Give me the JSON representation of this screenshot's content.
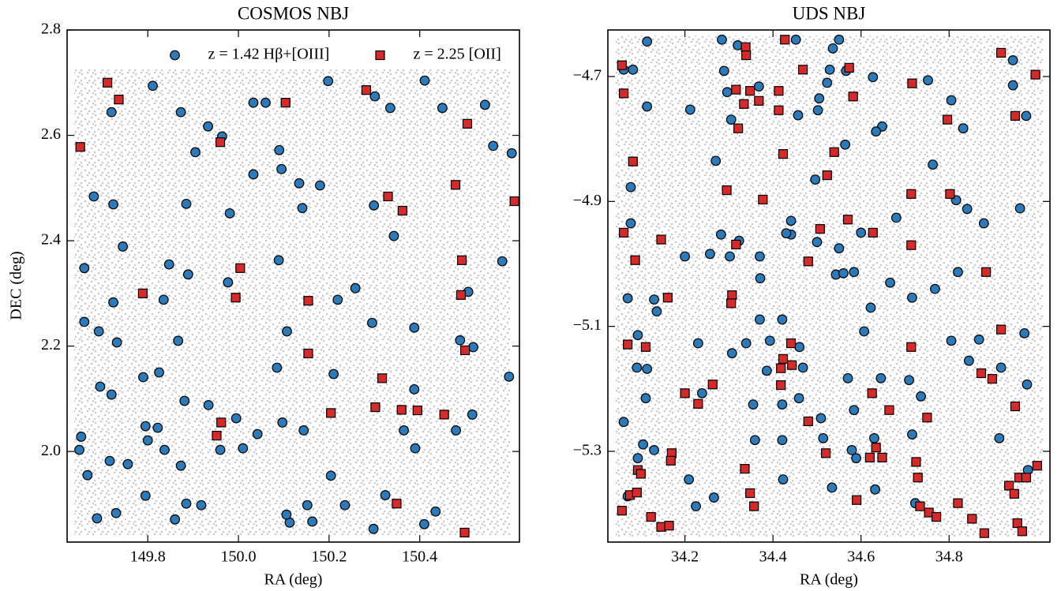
{
  "chart_data": [
    {
      "type": "scatter",
      "title": "COSMOS NBJ",
      "x_label": "RA (deg)",
      "y_label": "DEC (deg)",
      "xlim": [
        149.622,
        150.62
      ],
      "ylim": [
        1.828,
        2.8
      ],
      "xticks": [
        149.8,
        {
          "value": 150.0,
          "label": "150.0"
        },
        150.2,
        150.4
      ],
      "yticks": [
        {
          "value": 2.0,
          "label": "2.0"
        },
        2.2,
        2.4,
        2.6,
        2.8
      ],
      "legend": "upper center",
      "series": [
        {
          "name": "z = 1.42 Hβ+[OIII]",
          "marker": "circle",
          "color": "#2b7bba",
          "x": [
            149.811,
            149.72,
            149.873,
            149.933,
            149.964,
            149.905,
            150.033,
            150.06,
            150.09,
            150.033,
            150.095,
            150.198,
            150.301,
            150.335,
            150.411,
            150.45,
            150.544,
            150.562,
            150.603,
            149.681,
            149.724,
            149.745,
            149.885,
            149.981,
            150.134,
            150.18,
            150.141,
            150.299,
            150.343,
            150.507,
            150.582,
            149.66,
            149.847,
            149.889,
            149.977,
            149.835,
            150.089,
            150.219,
            150.258,
            150.107,
            149.724,
            149.867,
            149.692,
            149.66,
            149.732,
            150.388,
            150.295,
            150.489,
            150.518,
            149.695,
            149.72,
            149.79,
            149.825,
            149.934,
            150.085,
            150.21,
            150.388,
            150.597,
            149.795,
            149.8,
            149.822,
            149.881,
            149.995,
            150.042,
            150.097,
            150.144,
            150.365,
            150.516,
            150.48,
            149.649,
            149.667,
            149.716,
            149.756,
            149.795,
            149.837,
            149.873,
            149.885,
            149.918,
            149.96,
            150.01,
            150.152,
            150.204,
            150.235,
            150.324,
            150.39,
            149.688,
            149.73,
            149.86,
            150.113,
            150.163,
            150.298,
            150.41,
            150.435,
            150.106,
            149.653
          ],
          "values": [
            2.694,
            2.644,
            2.644,
            2.617,
            2.598,
            2.568,
            2.662,
            2.662,
            2.572,
            2.526,
            2.536,
            2.703,
            2.674,
            2.652,
            2.704,
            2.652,
            2.658,
            2.58,
            2.566,
            2.484,
            2.469,
            2.389,
            2.47,
            2.452,
            2.509,
            2.505,
            2.462,
            2.467,
            2.409,
            2.303,
            2.361,
            2.348,
            2.355,
            2.336,
            2.321,
            2.288,
            2.363,
            2.288,
            2.31,
            2.228,
            2.283,
            2.21,
            2.228,
            2.246,
            2.207,
            2.235,
            2.244,
            2.211,
            2.198,
            2.123,
            2.108,
            2.141,
            2.15,
            2.088,
            2.159,
            2.147,
            2.118,
            2.142,
            2.048,
            2.021,
            2.045,
            2.096,
            2.063,
            2.033,
            2.055,
            2.04,
            2.04,
            2.07,
            2.04,
            2.003,
            1.955,
            1.982,
            1.976,
            1.916,
            2.003,
            1.973,
            1.901,
            1.898,
            2.003,
            2.006,
            1.898,
            1.954,
            1.898,
            1.917,
            2.006,
            1.873,
            1.883,
            1.871,
            1.865,
            1.867,
            1.853,
            1.862,
            1.886,
            1.88,
            2.028
          ]
        },
        {
          "name": "z = 2.25 [OII]",
          "marker": "square",
          "color": "#d62a2a",
          "x": [
            149.651,
            149.711,
            149.736,
            149.96,
            150.104,
            150.282,
            150.33,
            150.362,
            150.479,
            150.505,
            150.609,
            150.004,
            149.789,
            149.994,
            150.154,
            150.154,
            150.493,
            150.491,
            150.5,
            150.317,
            150.302,
            150.36,
            150.395,
            150.454,
            150.204,
            149.962,
            149.952,
            150.349,
            150.499
          ],
          "values": [
            2.578,
            2.7,
            2.668,
            2.587,
            2.662,
            2.686,
            2.484,
            2.457,
            2.506,
            2.622,
            2.475,
            2.348,
            2.3,
            2.292,
            2.286,
            2.186,
            2.363,
            2.297,
            2.192,
            2.139,
            2.084,
            2.079,
            2.078,
            2.07,
            2.073,
            2.055,
            2.03,
            1.901,
            1.846
          ]
        }
      ]
    },
    {
      "type": "scatter",
      "title": "UDS NBJ",
      "x_label": "RA (deg)",
      "xlim": [
        34.025,
        35.029
      ],
      "ylim": [
        -5.4453,
        -4.6255
      ],
      "xticks": [
        34.2,
        34.4,
        34.6,
        34.8
      ],
      "yticks": [
        {
          "value": -5.3,
          "label": "−5.3"
        },
        {
          "value": -5.1,
          "label": "−5.1"
        },
        {
          "value": -4.9,
          "label": "−4.9"
        },
        {
          "value": -4.7,
          "label": "−4.7"
        }
      ],
      "series": [
        {
          "marker": "circle",
          "color": "#2b7bba",
          "x": [
            34.061,
            34.082,
            34.114,
            34.289,
            34.284,
            34.32,
            34.452,
            34.55,
            34.536,
            34.523,
            34.627,
            34.752,
            34.529,
            34.566,
            34.368,
            34.296,
            34.212,
            34.114,
            34.502,
            34.648,
            34.832,
            34.805,
            34.505,
            34.945,
            34.945,
            34.975,
            34.457,
            34.305,
            34.564,
            34.634,
            34.763,
            34.27,
            34.077,
            34.077,
            34.68,
            34.841,
            34.879,
            34.961,
            34.816,
            34.496,
            34.282,
            34.323,
            34.441,
            34.441,
            34.43,
            34.5,
            34.55,
            34.6,
            34.2,
            34.257,
            34.302,
            34.37,
            34.543,
            34.56,
            34.584,
            34.371,
            34.666,
            34.82,
            34.768,
            34.716,
            34.07,
            34.13,
            34.136,
            34.622,
            34.37,
            34.421,
            34.607,
            34.093,
            34.23,
            34.339,
            34.393,
            34.46,
            34.805,
            34.868,
            34.971,
            34.114,
            34.091,
            34.307,
            34.468,
            34.845,
            34.918,
            34.645,
            34.57,
            34.386,
            34.709,
            34.977,
            34.111,
            34.239,
            34.459,
            34.736,
            34.355,
            34.421,
            34.584,
            34.509,
            34.061,
            34.514,
            34.716,
            34.914,
            34.359,
            34.421,
            34.105,
            34.13,
            34.093,
            34.63,
            34.589,
            34.979,
            34.209,
            34.423,
            34.534,
            34.632,
            34.266,
            34.225,
            34.723,
            34.07,
            34.579
          ],
          "values": [
            -4.689,
            -4.689,
            -4.644,
            -4.691,
            -4.641,
            -4.65,
            -4.641,
            -4.641,
            -4.655,
            -4.71,
            -4.701,
            -4.706,
            -4.689,
            -4.691,
            -4.716,
            -4.725,
            -4.753,
            -4.748,
            -4.754,
            -4.78,
            -4.783,
            -4.738,
            -4.735,
            -4.714,
            -4.674,
            -4.763,
            -4.762,
            -4.769,
            -4.809,
            -4.788,
            -4.841,
            -4.835,
            -4.877,
            -4.935,
            -4.926,
            -4.912,
            -4.935,
            -4.911,
            -4.898,
            -4.865,
            -4.953,
            -4.963,
            -4.931,
            -4.953,
            -4.951,
            -4.965,
            -4.975,
            -4.95,
            -4.988,
            -4.984,
            -4.988,
            -4.988,
            -5.017,
            -5.015,
            -5.013,
            -5.023,
            -5.03,
            -5.013,
            -5.04,
            -5.054,
            -5.055,
            -5.057,
            -5.076,
            -5.07,
            -5.089,
            -5.089,
            -5.108,
            -5.114,
            -5.127,
            -5.127,
            -5.123,
            -5.133,
            -5.123,
            -5.121,
            -5.111,
            -5.168,
            -5.166,
            -5.143,
            -5.166,
            -5.155,
            -5.166,
            -5.183,
            -5.183,
            -5.171,
            -5.186,
            -5.193,
            -5.215,
            -5.207,
            -5.215,
            -5.212,
            -5.225,
            -5.225,
            -5.234,
            -5.247,
            -5.253,
            -5.279,
            -5.273,
            -5.279,
            -5.282,
            -5.282,
            -5.289,
            -5.298,
            -5.311,
            -5.279,
            -5.311,
            -5.33,
            -5.345,
            -5.345,
            -5.358,
            -5.361,
            -5.374,
            -5.388,
            -5.383,
            -5.372,
            -5.298
          ]
        },
        {
          "marker": "square",
          "color": "#d62a2a",
          "x": [
            34.057,
            34.061,
            34.082,
            34.316,
            34.338,
            34.339,
            34.334,
            34.321,
            34.348,
            34.368,
            34.427,
            34.413,
            34.413,
            34.468,
            34.423,
            34.539,
            34.582,
            34.573,
            34.716,
            34.796,
            34.918,
            34.95,
            34.996,
            34.295,
            34.377,
            34.523,
            34.714,
            34.802,
            34.57,
            34.507,
            34.627,
            34.714,
            34.061,
            34.146,
            34.087,
            34.48,
            34.316,
            34.884,
            34.161,
            34.307,
            34.305,
            34.07,
            34.111,
            34.441,
            34.423,
            34.418,
            34.443,
            34.714,
            34.873,
            34.918,
            34.898,
            34.2,
            34.23,
            34.263,
            34.418,
            34.625,
            34.664,
            34.75,
            34.95,
            34.48,
            34.52,
            34.17,
            34.634,
            34.648,
            34.725,
            34.729,
            34.62,
            34.168,
            34.336,
            34.348,
            34.59,
            34.357,
            34.093,
            34.1,
            34.075,
            34.057,
            34.091,
            34.123,
            34.146,
            34.164,
            34.936,
            34.948,
            34.959,
            34.975,
            35.0,
            34.955,
            34.966,
            34.852,
            34.734,
            34.754,
            34.771,
            34.82,
            34.88
          ],
          "values": [
            -4.682,
            -4.727,
            -4.836,
            -4.721,
            -4.653,
            -4.666,
            -4.744,
            -4.783,
            -4.723,
            -4.739,
            -4.641,
            -4.723,
            -4.754,
            -4.689,
            -4.824,
            -4.821,
            -4.732,
            -4.686,
            -4.711,
            -4.769,
            -4.662,
            -4.763,
            -4.697,
            -4.882,
            -4.897,
            -4.858,
            -4.888,
            -4.888,
            -4.929,
            -4.944,
            -4.95,
            -4.97,
            -4.95,
            -4.961,
            -4.994,
            -4.996,
            -4.969,
            -5.013,
            -5.054,
            -5.05,
            -5.063,
            -5.129,
            -5.133,
            -5.127,
            -5.152,
            -5.167,
            -5.162,
            -5.133,
            -5.175,
            -5.105,
            -5.184,
            -5.207,
            -5.224,
            -5.193,
            -5.194,
            -5.207,
            -5.234,
            -5.246,
            -5.228,
            -5.252,
            -5.303,
            -5.303,
            -5.294,
            -5.31,
            -5.317,
            -5.342,
            -5.31,
            -5.315,
            -5.328,
            -5.367,
            -5.378,
            -5.388,
            -5.33,
            -5.336,
            -5.37,
            -5.395,
            -5.366,
            -5.405,
            -5.421,
            -5.419,
            -5.355,
            -5.368,
            -5.342,
            -5.342,
            -5.323,
            -5.415,
            -5.428,
            -5.408,
            -5.388,
            -5.398,
            -5.405,
            -5.383,
            -5.431
          ]
        }
      ]
    }
  ]
}
